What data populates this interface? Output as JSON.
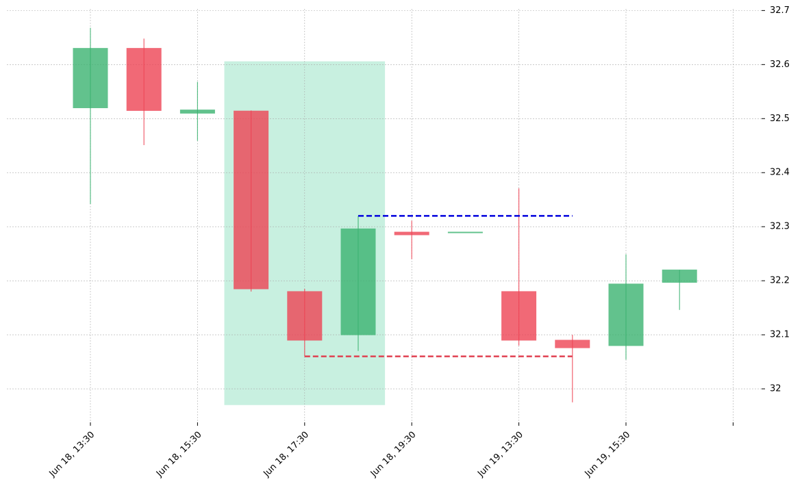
{
  "chart_data": {
    "type": "candlestick",
    "categories": [
      "Jun 18, 13:30",
      null,
      "Jun 18, 15:30",
      null,
      "Jun 18, 17:30",
      null,
      "Jun 18, 19:30",
      null,
      "Jun 19, 13:30",
      null,
      "Jun 19, 15:30",
      null,
      null
    ],
    "open": [
      32.52,
      32.63,
      32.51,
      32.514,
      32.18,
      32.1,
      32.29,
      32.29,
      32.18,
      32.09,
      32.08,
      32.197,
      null
    ],
    "high": [
      32.668,
      32.648,
      32.568,
      32.515,
      32.185,
      32.32,
      32.311,
      32.29,
      32.371,
      32.1,
      32.249,
      32.22,
      null
    ],
    "low": [
      32.342,
      32.451,
      32.459,
      32.18,
      32.06,
      32.07,
      32.24,
      32.29,
      32.08,
      31.975,
      32.054,
      32.146,
      null
    ],
    "close": [
      32.63,
      32.515,
      32.516,
      32.185,
      32.09,
      32.296,
      32.285,
      32.29,
      32.09,
      32.076,
      32.194,
      32.22,
      null
    ],
    "up_color": "#3cb371",
    "down_color": "#ee4455",
    "ylim": [
      31.938,
      32.703
    ],
    "yticks": [
      32.0,
      32.1,
      32.2,
      32.3,
      32.4,
      32.5,
      32.6,
      32.7
    ],
    "grid": true,
    "highlight": {
      "x": [
        2.5,
        5.5
      ],
      "y": [
        31.97,
        32.606
      ],
      "color": "#c8f0e0"
    },
    "levels": [
      {
        "value": 32.32,
        "from": 5,
        "to": 9,
        "color": "#0000dd"
      },
      {
        "value": 32.06,
        "from": 4,
        "to": 9,
        "color": "#e04050"
      }
    ]
  }
}
